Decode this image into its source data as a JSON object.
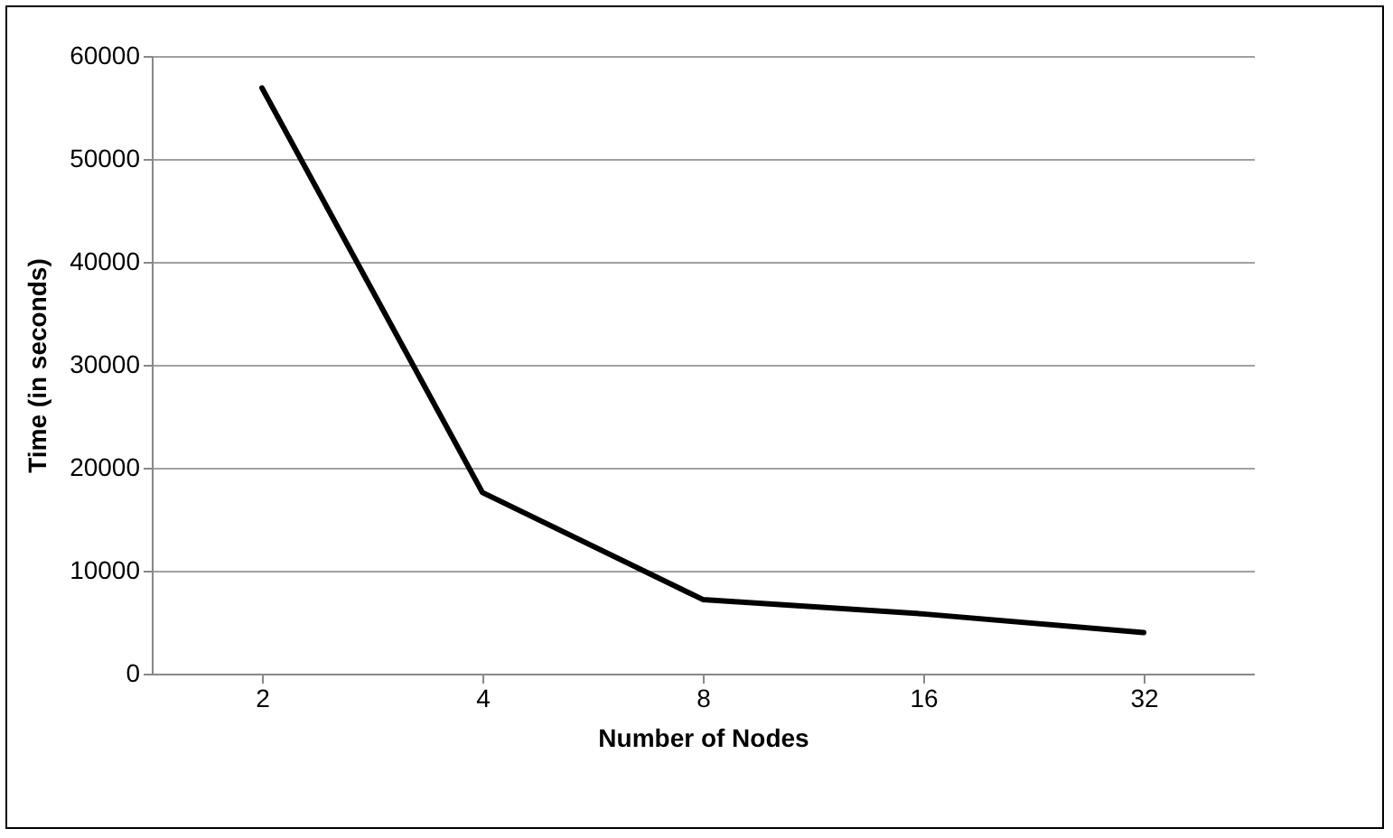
{
  "chart_data": {
    "type": "line",
    "xlabel": "Number of Nodes",
    "ylabel": "Time (in seconds)",
    "categories": [
      "2",
      "4",
      "8",
      "16",
      "32"
    ],
    "series": [
      {
        "color": "#000000",
        "values": [
          56900,
          17600,
          7200,
          5800,
          4000
        ]
      }
    ],
    "ylim": [
      0,
      60000
    ],
    "yticks": [
      0,
      10000,
      20000,
      30000,
      40000,
      50000,
      60000
    ],
    "grid": "y",
    "marker": "none",
    "line_style": "solid"
  }
}
